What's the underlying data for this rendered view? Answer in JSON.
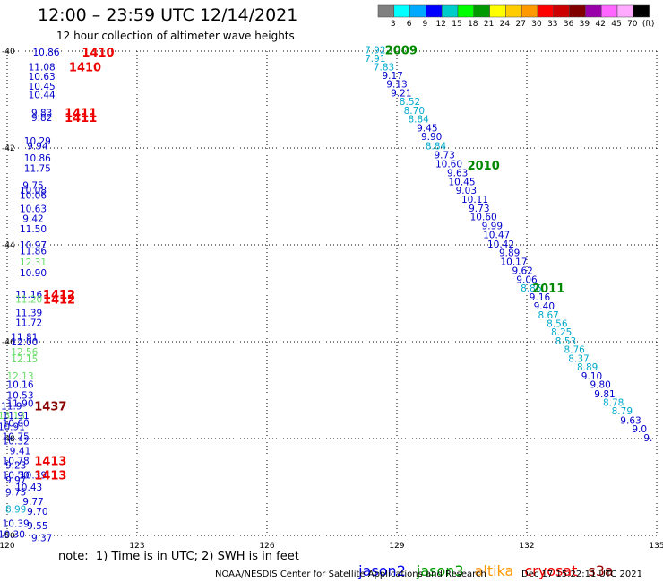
{
  "header": {
    "title": "12:00 – 23:59 UTC 12/14/2021",
    "subtitle": "12 hour collection of altimeter wave heights"
  },
  "legend": {
    "colors": [
      "#808080",
      "#00ffff",
      "#00aaff",
      "#0000ff",
      "#00cccc",
      "#00ff00",
      "#009900",
      "#ffff00",
      "#ffcc00",
      "#ff9900",
      "#ff0000",
      "#cc0000",
      "#800000",
      "#9900aa",
      "#ff66ff",
      "#ffaaff",
      "#000000"
    ],
    "labels": [
      "3",
      "6",
      "9",
      "12",
      "15",
      "18",
      "21",
      "24",
      "27",
      "30",
      "33",
      "36",
      "39",
      "42",
      "45",
      "70",
      "(ft)"
    ]
  },
  "chart_data": {
    "type": "scatter",
    "xlim": [
      120,
      135
    ],
    "ylim": [
      -50,
      -40
    ],
    "xticks": [
      "120",
      "123",
      "126",
      "129",
      "132",
      "135"
    ],
    "yticks": [
      "-40",
      "-42",
      "-44",
      "-46",
      "-48",
      "-50"
    ],
    "grid": true,
    "points": [
      {
        "lon": 120.9,
        "lat": -40.02,
        "label": "10.86",
        "color": "#0000cc"
      },
      {
        "lon": 120.8,
        "lat": -40.32,
        "label": "11.08",
        "color": "#0000cc"
      },
      {
        "lon": 120.8,
        "lat": -40.52,
        "label": "10.63",
        "color": "#0000cc"
      },
      {
        "lon": 120.8,
        "lat": -40.72,
        "label": "10.45",
        "color": "#0000cc"
      },
      {
        "lon": 120.8,
        "lat": -40.9,
        "label": "10.44",
        "color": "#0000cc"
      },
      {
        "lon": 120.8,
        "lat": -41.27,
        "label": "9.83",
        "color": "#0000cc"
      },
      {
        "lon": 120.8,
        "lat": -41.37,
        "label": "9.82",
        "color": "#0000cc"
      },
      {
        "lon": 120.7,
        "lat": -41.85,
        "label": "10.29",
        "color": "#0000cc"
      },
      {
        "lon": 120.7,
        "lat": -41.95,
        "label": "9.94",
        "color": "#0000cc"
      },
      {
        "lon": 120.7,
        "lat": -42.2,
        "label": "10.86",
        "color": "#0000cc"
      },
      {
        "lon": 120.7,
        "lat": -42.42,
        "label": "11.75",
        "color": "#0000cc"
      },
      {
        "lon": 120.6,
        "lat": -42.77,
        "label": "9.75",
        "color": "#0000cc"
      },
      {
        "lon": 120.6,
        "lat": -42.87,
        "label": "10.08",
        "color": "#0000cc"
      },
      {
        "lon": 120.6,
        "lat": -42.97,
        "label": "10.06",
        "color": "#0000cc"
      },
      {
        "lon": 120.6,
        "lat": -43.25,
        "label": "10.63",
        "color": "#0000cc"
      },
      {
        "lon": 120.6,
        "lat": -43.45,
        "label": "9.42",
        "color": "#0000cc"
      },
      {
        "lon": 120.6,
        "lat": -43.67,
        "label": "11.50",
        "color": "#0000cc"
      },
      {
        "lon": 120.6,
        "lat": -44.0,
        "label": "10.97",
        "color": "#0000cc"
      },
      {
        "lon": 120.6,
        "lat": -44.12,
        "label": "11.86",
        "color": "#0000cc"
      },
      {
        "lon": 120.6,
        "lat": -44.35,
        "label": "12.31",
        "color": "#66dd66"
      },
      {
        "lon": 120.6,
        "lat": -44.57,
        "label": "10.90",
        "color": "#0000cc"
      },
      {
        "lon": 120.5,
        "lat": -45.02,
        "label": "11.16",
        "color": "#0000cc"
      },
      {
        "lon": 120.5,
        "lat": -45.12,
        "label": "11.20",
        "color": "#66dd66"
      },
      {
        "lon": 120.5,
        "lat": -45.4,
        "label": "11.39",
        "color": "#0000cc"
      },
      {
        "lon": 120.5,
        "lat": -45.6,
        "label": "11.72",
        "color": "#0000cc"
      },
      {
        "lon": 120.4,
        "lat": -45.9,
        "label": "11.81",
        "color": "#0000cc"
      },
      {
        "lon": 120.4,
        "lat": -46.0,
        "label": "12.00",
        "color": "#0000cc"
      },
      {
        "lon": 120.4,
        "lat": -46.2,
        "label": "12.56",
        "color": "#66dd66"
      },
      {
        "lon": 120.4,
        "lat": -46.35,
        "label": "12.15",
        "color": "#66dd66"
      },
      {
        "lon": 120.3,
        "lat": -46.7,
        "label": "12.13",
        "color": "#66dd66"
      },
      {
        "lon": 120.3,
        "lat": -46.88,
        "label": "10.16",
        "color": "#0000cc"
      },
      {
        "lon": 120.3,
        "lat": -47.1,
        "label": "10.53",
        "color": "#0000cc"
      },
      {
        "lon": 120.3,
        "lat": -47.27,
        "label": "11.90",
        "color": "#0000cc"
      },
      {
        "lon": 120.1,
        "lat": -47.32,
        "label": "11.9",
        "color": "#0000cc"
      },
      {
        "lon": 120.1,
        "lat": -47.52,
        "label": "13.13",
        "color": "#66dd66"
      },
      {
        "lon": 120.2,
        "lat": -47.52,
        "label": "11.91",
        "color": "#0000cc"
      },
      {
        "lon": 120.2,
        "lat": -47.68,
        "label": "10.60",
        "color": "#0000cc"
      },
      {
        "lon": 120.1,
        "lat": -47.75,
        "label": "10.91",
        "color": "#0000cc"
      },
      {
        "lon": 120.2,
        "lat": -47.95,
        "label": "10.75",
        "color": "#0000cc"
      },
      {
        "lon": 120.2,
        "lat": -48.05,
        "label": "10.32",
        "color": "#0000cc"
      },
      {
        "lon": 120.3,
        "lat": -48.25,
        "label": "9.41",
        "color": "#0000cc"
      },
      {
        "lon": 120.2,
        "lat": -48.45,
        "label": "10.78",
        "color": "#0000cc"
      },
      {
        "lon": 120.2,
        "lat": -48.55,
        "label": "9.23",
        "color": "#0000cc"
      },
      {
        "lon": 120.2,
        "lat": -48.75,
        "label": "10.50",
        "color": "#0000cc"
      },
      {
        "lon": 120.6,
        "lat": -48.75,
        "label": "10.39",
        "color": "#0000cc"
      },
      {
        "lon": 120.2,
        "lat": -48.85,
        "label": "9.97",
        "color": "#0000cc"
      },
      {
        "lon": 120.5,
        "lat": -49.0,
        "label": "10.43",
        "color": "#0000cc"
      },
      {
        "lon": 120.2,
        "lat": -49.1,
        "label": "9.75",
        "color": "#0000cc"
      },
      {
        "lon": 120.6,
        "lat": -49.3,
        "label": "9.77",
        "color": "#0000cc"
      },
      {
        "lon": 120.2,
        "lat": -49.45,
        "label": "8.99",
        "color": "#00aacc"
      },
      {
        "lon": 120.7,
        "lat": -49.5,
        "label": "9.70",
        "color": "#0000cc"
      },
      {
        "lon": 120.2,
        "lat": -49.75,
        "label": "10.39",
        "color": "#0000cc"
      },
      {
        "lon": 120.7,
        "lat": -49.8,
        "label": "9.55",
        "color": "#0000cc"
      },
      {
        "lon": 120.1,
        "lat": -49.97,
        "label": "10.30",
        "color": "#0000cc"
      },
      {
        "lon": 120.8,
        "lat": -50.05,
        "label": "9.37",
        "color": "#0000cc"
      },
      {
        "lon": 128.5,
        "lat": -39.97,
        "label": "7.92",
        "color": "#00aacc"
      },
      {
        "lon": 128.5,
        "lat": -40.15,
        "label": "7.91",
        "color": "#00aacc"
      },
      {
        "lon": 128.7,
        "lat": -40.32,
        "label": "7.83",
        "color": "#00aacc"
      },
      {
        "lon": 128.9,
        "lat": -40.5,
        "label": "9.17",
        "color": "#0000cc"
      },
      {
        "lon": 129.0,
        "lat": -40.68,
        "label": "9.13",
        "color": "#0000cc"
      },
      {
        "lon": 129.1,
        "lat": -40.86,
        "label": "9.21",
        "color": "#0000cc"
      },
      {
        "lon": 129.3,
        "lat": -41.04,
        "label": "8.52",
        "color": "#00aacc"
      },
      {
        "lon": 129.4,
        "lat": -41.22,
        "label": "8.70",
        "color": "#00aacc"
      },
      {
        "lon": 129.5,
        "lat": -41.4,
        "label": "8.84",
        "color": "#00aacc"
      },
      {
        "lon": 129.7,
        "lat": -41.58,
        "label": "9.45",
        "color": "#0000cc"
      },
      {
        "lon": 129.8,
        "lat": -41.76,
        "label": "9.90",
        "color": "#0000cc"
      },
      {
        "lon": 129.9,
        "lat": -41.95,
        "label": "8.84",
        "color": "#00aacc"
      },
      {
        "lon": 130.1,
        "lat": -42.14,
        "label": "9.73",
        "color": "#0000cc"
      },
      {
        "lon": 130.2,
        "lat": -42.32,
        "label": "10.60",
        "color": "#0000cc"
      },
      {
        "lon": 130.4,
        "lat": -42.51,
        "label": "9.63",
        "color": "#0000cc"
      },
      {
        "lon": 130.5,
        "lat": -42.69,
        "label": "10.45",
        "color": "#0000cc"
      },
      {
        "lon": 130.6,
        "lat": -42.87,
        "label": "9.03",
        "color": "#0000cc"
      },
      {
        "lon": 130.8,
        "lat": -43.06,
        "label": "10.11",
        "color": "#0000cc"
      },
      {
        "lon": 130.9,
        "lat": -43.24,
        "label": "9.73",
        "color": "#0000cc"
      },
      {
        "lon": 131.0,
        "lat": -43.42,
        "label": "10.60",
        "color": "#0000cc"
      },
      {
        "lon": 131.2,
        "lat": -43.6,
        "label": "9.99",
        "color": "#0000cc"
      },
      {
        "lon": 131.3,
        "lat": -43.79,
        "label": "10.47",
        "color": "#0000cc"
      },
      {
        "lon": 131.4,
        "lat": -43.98,
        "label": "10.42",
        "color": "#0000cc"
      },
      {
        "lon": 131.6,
        "lat": -44.16,
        "label": "9.89",
        "color": "#0000cc"
      },
      {
        "lon": 131.7,
        "lat": -44.34,
        "label": "10.17",
        "color": "#0000cc"
      },
      {
        "lon": 131.9,
        "lat": -44.53,
        "label": "9.62",
        "color": "#0000cc"
      },
      {
        "lon": 132.0,
        "lat": -44.71,
        "label": "9.06",
        "color": "#0000cc"
      },
      {
        "lon": 132.1,
        "lat": -44.89,
        "label": "8.86",
        "color": "#00aacc"
      },
      {
        "lon": 132.3,
        "lat": -45.07,
        "label": "9.16",
        "color": "#0000cc"
      },
      {
        "lon": 132.4,
        "lat": -45.26,
        "label": "9.40",
        "color": "#0000cc"
      },
      {
        "lon": 132.5,
        "lat": -45.44,
        "label": "8.67",
        "color": "#00aacc"
      },
      {
        "lon": 132.7,
        "lat": -45.62,
        "label": "8.56",
        "color": "#00aacc"
      },
      {
        "lon": 132.8,
        "lat": -45.8,
        "label": "8.25",
        "color": "#00aacc"
      },
      {
        "lon": 132.9,
        "lat": -45.98,
        "label": "8.53",
        "color": "#00aacc"
      },
      {
        "lon": 133.1,
        "lat": -46.16,
        "label": "8.76",
        "color": "#00aacc"
      },
      {
        "lon": 133.2,
        "lat": -46.34,
        "label": "8.37",
        "color": "#00aacc"
      },
      {
        "lon": 133.4,
        "lat": -46.52,
        "label": "8.89",
        "color": "#00aacc"
      },
      {
        "lon": 133.5,
        "lat": -46.7,
        "label": "9.10",
        "color": "#0000cc"
      },
      {
        "lon": 133.7,
        "lat": -46.88,
        "label": "9.80",
        "color": "#0000cc"
      },
      {
        "lon": 133.8,
        "lat": -47.07,
        "label": "9.81",
        "color": "#0000cc"
      },
      {
        "lon": 134.0,
        "lat": -47.25,
        "label": "8.78",
        "color": "#00aacc"
      },
      {
        "lon": 134.2,
        "lat": -47.43,
        "label": "8.79",
        "color": "#00aacc"
      },
      {
        "lon": 134.4,
        "lat": -47.62,
        "label": "9.63",
        "color": "#0000cc"
      },
      {
        "lon": 134.6,
        "lat": -47.8,
        "label": "9.0",
        "color": "#0000cc"
      },
      {
        "lon": 134.8,
        "lat": -47.98,
        "label": "9.",
        "color": "#0000cc"
      }
    ],
    "annotations": [
      {
        "lon": 122.1,
        "lat": -40.02,
        "label": "1410",
        "color": "#ee0000"
      },
      {
        "lon": 121.8,
        "lat": -40.32,
        "label": "1410",
        "color": "#ee0000"
      },
      {
        "lon": 121.7,
        "lat": -41.27,
        "label": "1411",
        "color": "#ee0000"
      },
      {
        "lon": 121.7,
        "lat": -41.37,
        "label": "1411",
        "color": "#ee0000"
      },
      {
        "lon": 121.2,
        "lat": -45.02,
        "label": "1412",
        "color": "#ee0000"
      },
      {
        "lon": 121.2,
        "lat": -45.12,
        "label": "1412",
        "color": "#ee0000"
      },
      {
        "lon": 121.0,
        "lat": -47.32,
        "label": "1437",
        "color": "#880000"
      },
      {
        "lon": 121.0,
        "lat": -48.45,
        "label": "1413",
        "color": "#ee0000"
      },
      {
        "lon": 121.0,
        "lat": -48.75,
        "label": "1413",
        "color": "#ee0000"
      },
      {
        "lon": 129.1,
        "lat": -39.97,
        "label": "2009",
        "color": "#008800"
      },
      {
        "lon": 131.0,
        "lat": -42.35,
        "label": "2010",
        "color": "#008800"
      },
      {
        "lon": 132.5,
        "lat": -44.89,
        "label": "2011",
        "color": "#008800"
      }
    ]
  },
  "notes": {
    "note": "note:  1) Time is in UTC; 2) SWH is in feet"
  },
  "satellites": [
    {
      "name": "jason2",
      "color": "#0000ee"
    },
    {
      "name": "jason3",
      "color": "#009900"
    },
    {
      "name": "altika",
      "color": "#ff9900"
    },
    {
      "name": "cryosat",
      "color": "#ee0000"
    },
    {
      "name": "s3a",
      "color": "#990000"
    }
  ],
  "footer": {
    "source": "NOAA/NESDIS Center for Satellite Applications and Research",
    "timestamp": "Dec 17 15:22:11 UTC 2021"
  }
}
